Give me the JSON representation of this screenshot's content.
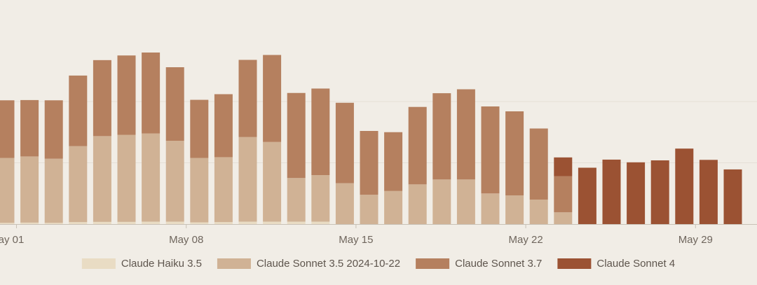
{
  "chart_data": {
    "type": "bar",
    "stacked": true,
    "x_tick_labels": [
      "ay 01",
      "May 08",
      "May 15",
      "May 22",
      "May 29"
    ],
    "x_tick_days": [
      1,
      8,
      15,
      22,
      29
    ],
    "days": [
      1,
      2,
      3,
      4,
      5,
      6,
      7,
      8,
      9,
      10,
      11,
      12,
      13,
      14,
      15,
      16,
      17,
      18,
      19,
      20,
      21,
      22,
      23,
      24,
      25,
      26,
      27,
      28,
      29,
      30,
      31
    ],
    "series": [
      {
        "name": "Claude Haiku 3.5",
        "color": "#e9dcc4",
        "values": [
          0.5,
          0.6,
          0.5,
          0.8,
          0.9,
          0.9,
          1.0,
          1.0,
          0.7,
          0.8,
          1.0,
          1.0,
          1.0,
          1.0,
          0,
          0,
          0,
          0,
          0,
          0,
          0,
          0,
          0,
          0,
          0,
          0,
          0,
          0,
          0,
          0,
          0
        ]
      },
      {
        "name": "Claude Sonnet 3.5 2024-10-22",
        "color": "#d0b295",
        "values": [
          26.5,
          27.0,
          26.2,
          31.0,
          35.0,
          35.5,
          36.0,
          33.0,
          26.3,
          26.5,
          34.5,
          32.5,
          17.8,
          19.0,
          16.7,
          12.0,
          13.5,
          16.2,
          18.2,
          18.2,
          12.5,
          11.7,
          10.0,
          4.8,
          0,
          0,
          0,
          0,
          0,
          0,
          0
        ]
      },
      {
        "name": "Claude Sonnet 3.7",
        "color": "#b5805f",
        "values": [
          23.5,
          23.0,
          23.8,
          28.8,
          31.0,
          32.4,
          33.0,
          30.0,
          23.7,
          25.7,
          31.5,
          35.5,
          34.7,
          35.3,
          32.8,
          26.0,
          24.0,
          31.6,
          35.2,
          36.8,
          35.5,
          34.3,
          29.0,
          14.7,
          0,
          0,
          0,
          0,
          0,
          0,
          0
        ]
      },
      {
        "name": "Claude Sonnet 4",
        "color": "#9b5233",
        "values": [
          0,
          0,
          0,
          0,
          0,
          0,
          0,
          0,
          0,
          0,
          0,
          0,
          0,
          0,
          0,
          0,
          0,
          0,
          0,
          0,
          0,
          0,
          0,
          7.7,
          23.0,
          26.3,
          25.2,
          26.0,
          30.8,
          26.2,
          22.3
        ]
      }
    ],
    "ylim": [
      0,
      75
    ],
    "grid": true,
    "legend_position": "bottom-center",
    "title": "",
    "xlabel": "",
    "ylabel": ""
  }
}
